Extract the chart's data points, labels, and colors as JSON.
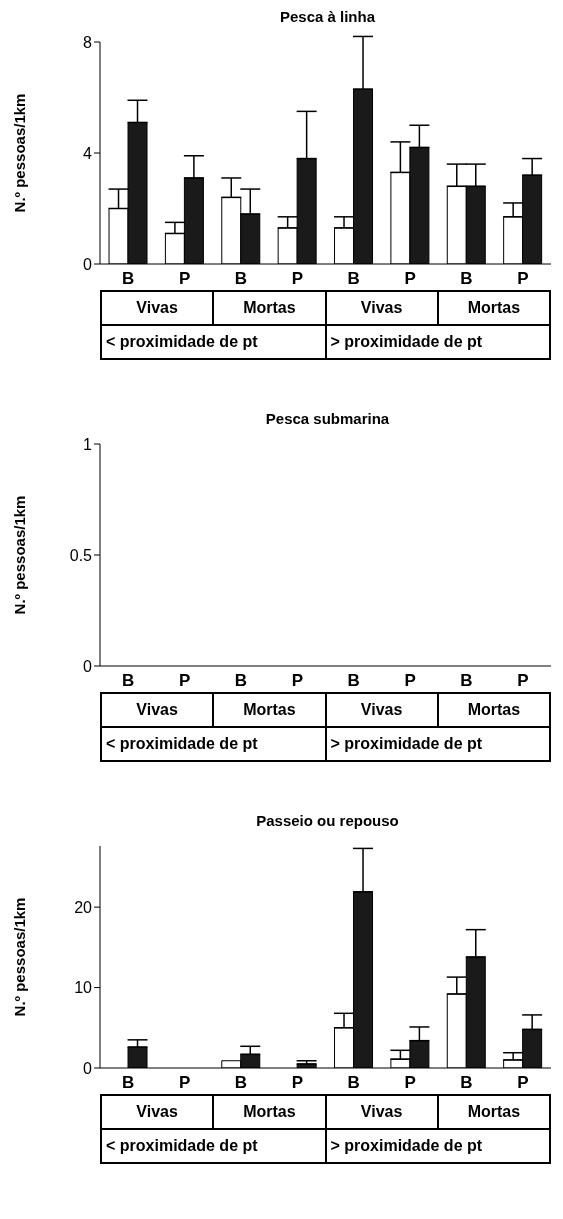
{
  "chart_data": [
    {
      "type": "bar",
      "title": "Pesca à linha",
      "ylabel": "N.º pessoas/1km",
      "categories": [
        "B",
        "P",
        "B",
        "P",
        "B",
        "P",
        "B",
        "P"
      ],
      "series": [
        {
          "color": "#ffffff",
          "values": [
            2.0,
            1.1,
            2.4,
            1.3,
            1.3,
            3.3,
            2.8,
            1.7
          ],
          "errors": [
            [
              2.0,
              2.7
            ],
            [
              1.1,
              1.5
            ],
            [
              2.4,
              3.1
            ],
            [
              1.3,
              1.7
            ],
            [
              1.3,
              1.7
            ],
            [
              3.3,
              4.4
            ],
            [
              2.8,
              3.6
            ],
            [
              1.7,
              2.2
            ]
          ]
        },
        {
          "color": "#1a1a1a",
          "values": [
            5.1,
            3.1,
            1.8,
            3.8,
            6.3,
            4.2,
            2.8,
            3.2
          ],
          "errors": [
            [
              5.1,
              5.9
            ],
            [
              3.1,
              3.9
            ],
            [
              1.8,
              2.7
            ],
            [
              3.8,
              5.5
            ],
            [
              6.3,
              8.2
            ],
            [
              4.2,
              5.0
            ],
            [
              2.8,
              3.6
            ],
            [
              3.2,
              3.8
            ]
          ]
        }
      ],
      "ylim": [
        0,
        8
      ],
      "yticks": [
        0,
        4,
        8
      ],
      "annotations": [
        "Vivas",
        "Mortas",
        "Vivas",
        "Mortas",
        "< proximidade de pt",
        "> proximidade de pt"
      ]
    },
    {
      "type": "bar",
      "title": "Pesca submarina",
      "ylabel": "N.º pessoas/1km",
      "categories": [
        "B",
        "P",
        "B",
        "P",
        "B",
        "P",
        "B",
        "P"
      ],
      "series": [
        {
          "color": "#ffffff",
          "values": [
            0,
            0,
            0,
            0,
            0,
            0,
            0,
            0
          ]
        },
        {
          "color": "#1a1a1a",
          "values": [
            0,
            0,
            0,
            0,
            0,
            0,
            0,
            0
          ]
        }
      ],
      "ylim": [
        0,
        1
      ],
      "yticks": [
        0,
        0.5,
        1
      ],
      "annotations": [
        "Vivas",
        "Mortas",
        "Vivas",
        "Mortas",
        "< proximidade de pt",
        "> proximidade de pt"
      ]
    },
    {
      "type": "bar",
      "title": "Passeio ou repouso",
      "ylabel": "N.º pessoas/1km",
      "categories": [
        "B",
        "P",
        "B",
        "P",
        "B",
        "P",
        "B",
        "P"
      ],
      "series": [
        {
          "color": "#ffffff",
          "values": [
            null,
            null,
            0.9,
            0,
            5.0,
            1.1,
            9.2,
            1.0
          ],
          "errors": [
            null,
            null,
            null,
            null,
            [
              5.0,
              6.8
            ],
            [
              1.1,
              2.2
            ],
            [
              9.2,
              11.3
            ],
            [
              1.0,
              1.9
            ]
          ]
        },
        {
          "color": "#1a1a1a",
          "values": [
            2.6,
            null,
            1.7,
            0.5,
            21.9,
            3.4,
            13.8,
            4.8
          ],
          "errors": [
            [
              2.6,
              3.5
            ],
            null,
            [
              1.7,
              2.7
            ],
            [
              0.5,
              0.9
            ],
            [
              21.9,
              27.3
            ],
            [
              3.4,
              5.1
            ],
            [
              13.8,
              17.2
            ],
            [
              4.8,
              6.6
            ]
          ]
        }
      ],
      "ylim": [
        0,
        27.6
      ],
      "yticks": [
        0,
        10,
        20
      ],
      "annotations": [
        "Vivas",
        "Mortas",
        "Vivas",
        "Mortas",
        "< proximidade de pt",
        "> proximidade de pt"
      ]
    }
  ]
}
